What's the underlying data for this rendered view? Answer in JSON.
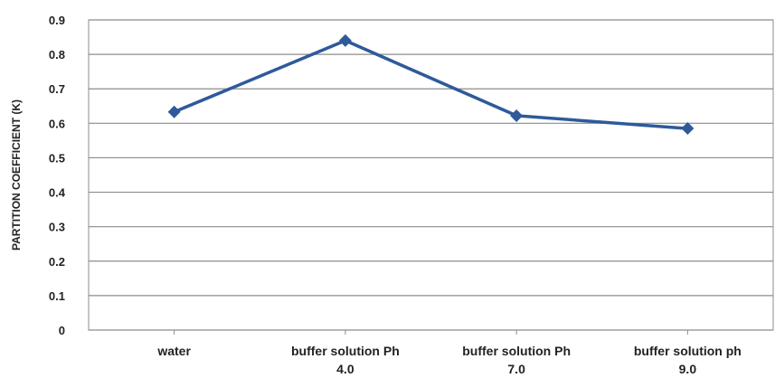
{
  "chart_data": {
    "type": "line",
    "title": "",
    "xlabel": "",
    "ylabel": "PARTITION COEFFICIENT (K)",
    "categories": [
      [
        "water"
      ],
      [
        "buffer solution Ph",
        "4.0"
      ],
      [
        "buffer solution Ph",
        "7.0"
      ],
      [
        "buffer solution ph",
        "9.0"
      ]
    ],
    "series": [
      {
        "values": [
          0.633,
          0.84,
          0.622,
          0.585
        ]
      }
    ],
    "ylim": [
      0,
      0.9
    ],
    "yticks": [
      "0",
      "0.1",
      "0.2",
      "0.3",
      "0.4",
      "0.5",
      "0.6",
      "0.7",
      "0.8",
      "0.9"
    ],
    "grid": true,
    "legend": "none",
    "line_color": "#2E5A9A",
    "grid_color": "#8c8c8c"
  }
}
